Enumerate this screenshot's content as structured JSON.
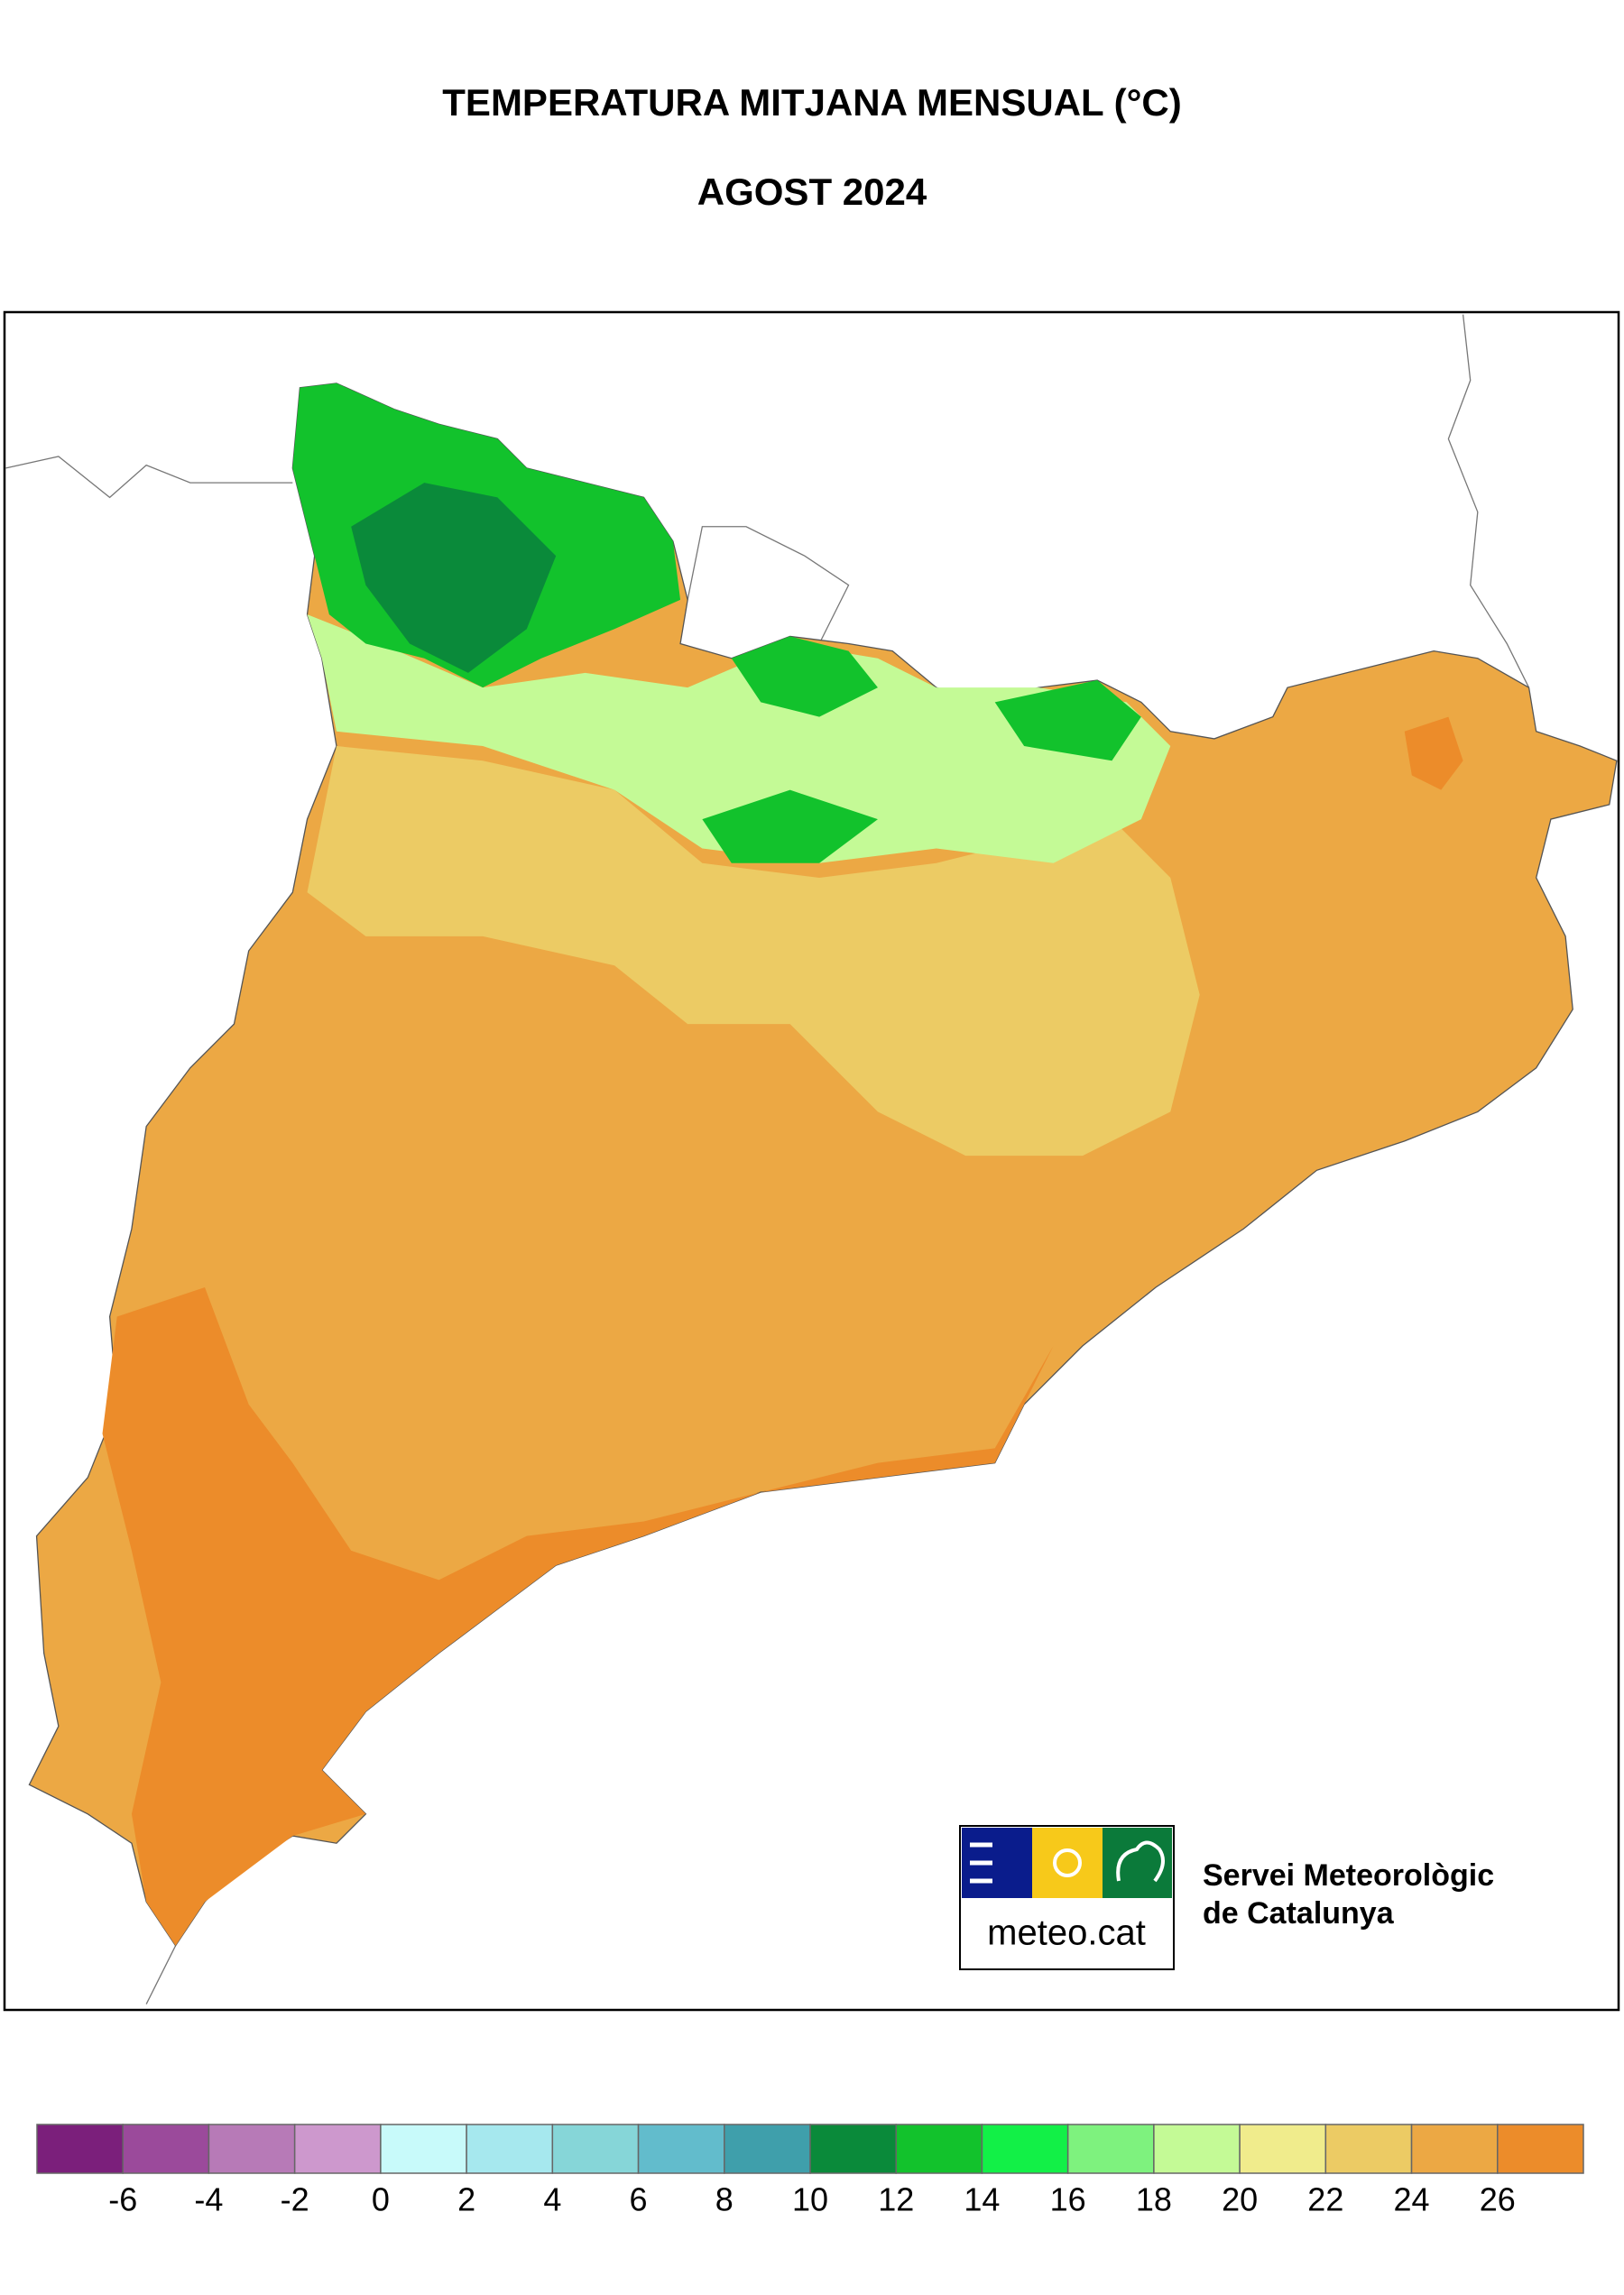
{
  "header": {
    "title": "TEMPERATURA MITJANA MENSUAL (°C)",
    "subtitle": "AGOST 2024"
  },
  "legend": {
    "colors": [
      "#7b1f7b",
      "#9b4a9b",
      "#b77ab7",
      "#cd98cd",
      "#c8fafa",
      "#a6e8ee",
      "#86d6d8",
      "#62bccc",
      "#3f9fab",
      "#0a8a3a",
      "#12c22c",
      "#12f047",
      "#7ef27e",
      "#c4fa96",
      "#f0ec8c",
      "#eccb64",
      "#eca844",
      "#ec8c2a"
    ],
    "ticks": [
      -6,
      -4,
      -2,
      0,
      2,
      4,
      6,
      8,
      10,
      12,
      14,
      16,
      18,
      20,
      22,
      24,
      26
    ]
  },
  "logo": {
    "brand": "meteo.cat",
    "org_line1": "Servei Meteorològic",
    "org_line2": "de Catalunya"
  }
}
